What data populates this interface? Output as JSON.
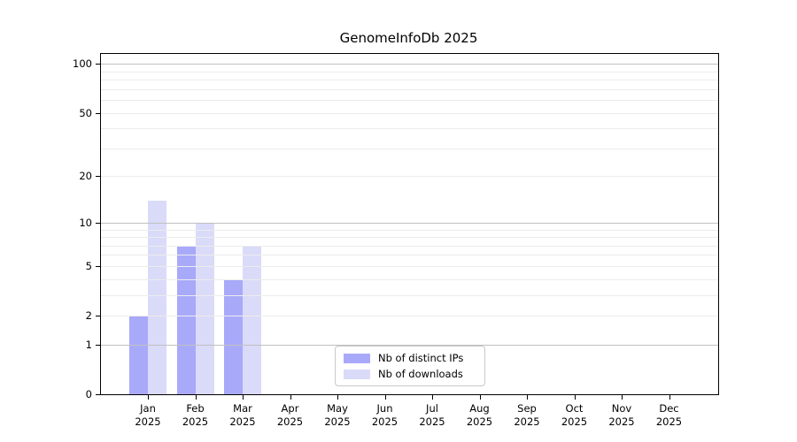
{
  "figure": {
    "background": "#ffffff"
  },
  "chart_data": {
    "type": "bar",
    "title": "GenomeInfoDb 2025",
    "categories": [
      "Jan 2025",
      "Feb 2025",
      "Mar 2025",
      "Apr 2025",
      "May 2025",
      "Jun 2025",
      "Jul 2025",
      "Aug 2025",
      "Sep 2025",
      "Oct 2025",
      "Nov 2025",
      "Dec 2025"
    ],
    "series": [
      {
        "name": "Nb of distinct IPs",
        "color": "#a9a9fa",
        "values": [
          2,
          7,
          4,
          null,
          null,
          null,
          null,
          null,
          null,
          null,
          null,
          null
        ]
      },
      {
        "name": "Nb of downloads",
        "color": "#dadaf9",
        "values": [
          14,
          10,
          7,
          null,
          null,
          null,
          null,
          null,
          null,
          null,
          null,
          null
        ]
      }
    ],
    "y_axis": {
      "scale": "log1p",
      "ticks": [
        100,
        50,
        20,
        10,
        5,
        2,
        1,
        0
      ],
      "max": 115
    },
    "grid": {
      "major_values": [
        1,
        10,
        100
      ],
      "minor_values": [
        2,
        3,
        4,
        5,
        6,
        7,
        8,
        9,
        20,
        30,
        40,
        50,
        60,
        70,
        80,
        90
      ],
      "major_color": "#c0c0c0",
      "minor_color": "#ececec"
    },
    "legend": {
      "position": "lower center",
      "entries": [
        "Nb of distinct IPs",
        "Nb of downloads"
      ]
    }
  }
}
